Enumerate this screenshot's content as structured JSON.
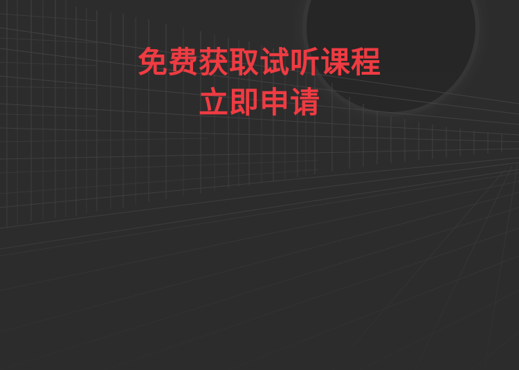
{
  "colors": {
    "background": "#2c2c2c",
    "accent": "#ef3b42",
    "lines": "#4a4a4a",
    "circle": "#262626"
  },
  "banner": {
    "headline": "免费获取试听课程",
    "action_label": "立即申请"
  }
}
